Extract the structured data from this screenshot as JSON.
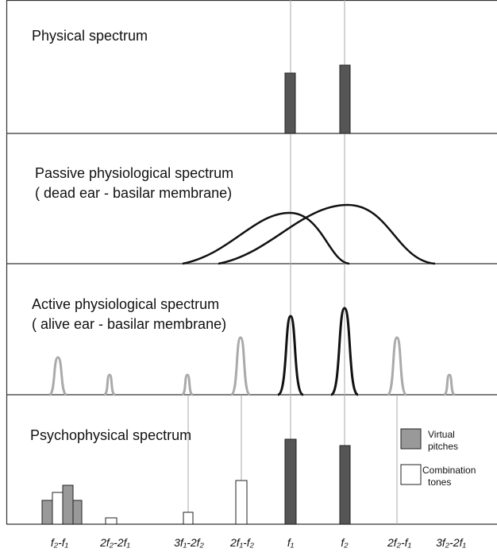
{
  "panels": [
    {
      "title": "Physical spectrum"
    },
    {
      "title": "Passive physiological spectrum",
      "subtitle": "( dead ear - basilar membrane)"
    },
    {
      "title": "Active physiological spectrum",
      "subtitle": "( alive ear - basilar membrane)"
    },
    {
      "title": "Psychophysical spectrum"
    }
  ],
  "legend": [
    {
      "line1": "Virtual",
      "line2": "pitches"
    },
    {
      "line1": "Combination",
      "line2": "tones"
    }
  ],
  "x_labels": [
    "f₂-f₁",
    "2f₂-2f₁",
    "3f₁-2f₂",
    "2f₁-f₂",
    "f₁",
    "f₂",
    "2f₂-f₁",
    "3f₂-2f₁"
  ]
}
